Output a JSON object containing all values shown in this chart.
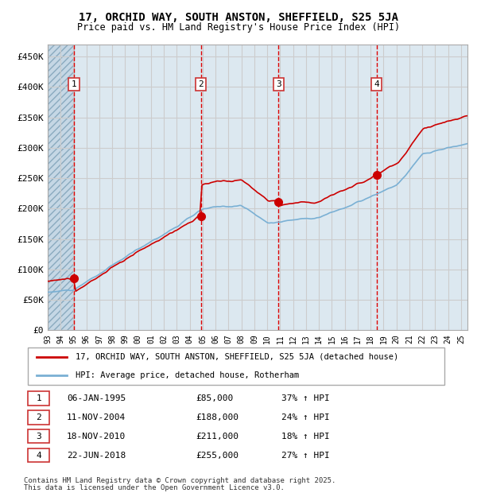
{
  "title": "17, ORCHID WAY, SOUTH ANSTON, SHEFFIELD, S25 5JA",
  "subtitle": "Price paid vs. HM Land Registry's House Price Index (HPI)",
  "legend_line1": "17, ORCHID WAY, SOUTH ANSTON, SHEFFIELD, S25 5JA (detached house)",
  "legend_line2": "HPI: Average price, detached house, Rotherham",
  "footnote1": "Contains HM Land Registry data © Crown copyright and database right 2025.",
  "footnote2": "This data is licensed under the Open Government Licence v3.0.",
  "purchases": [
    {
      "num": 1,
      "date": "06-JAN-1995",
      "price": 85000,
      "pct": "37%",
      "year": 1995.02
    },
    {
      "num": 2,
      "date": "11-NOV-2004",
      "price": 188000,
      "pct": "24%",
      "year": 2004.86
    },
    {
      "num": 3,
      "date": "18-NOV-2010",
      "price": 211000,
      "pct": "18%",
      "year": 2010.88
    },
    {
      "num": 4,
      "date": "22-JUN-2018",
      "price": 255000,
      "pct": "27%",
      "year": 2018.47
    }
  ],
  "ylim": [
    0,
    470000
  ],
  "xlim_start": 1993.0,
  "xlim_end": 2025.5,
  "yticks": [
    0,
    50000,
    100000,
    150000,
    200000,
    250000,
    300000,
    350000,
    400000,
    450000
  ],
  "ytick_labels": [
    "£0",
    "£50K",
    "£100K",
    "£150K",
    "£200K",
    "£250K",
    "£300K",
    "£350K",
    "£400K",
    "£450K"
  ],
  "xticks": [
    1993,
    1994,
    1995,
    1996,
    1997,
    1998,
    1999,
    2000,
    2001,
    2002,
    2003,
    2004,
    2005,
    2006,
    2007,
    2008,
    2009,
    2010,
    2011,
    2012,
    2013,
    2014,
    2015,
    2016,
    2017,
    2018,
    2019,
    2020,
    2021,
    2022,
    2023,
    2024,
    2025
  ],
  "red_color": "#cc0000",
  "blue_color": "#7ab0d4",
  "hatch_color": "#c8d8e8",
  "grid_color": "#cccccc",
  "bg_color": "#dce8f0",
  "pre_purchase_bg": "#c8d8e8",
  "dashed_line_color": "#dd0000"
}
